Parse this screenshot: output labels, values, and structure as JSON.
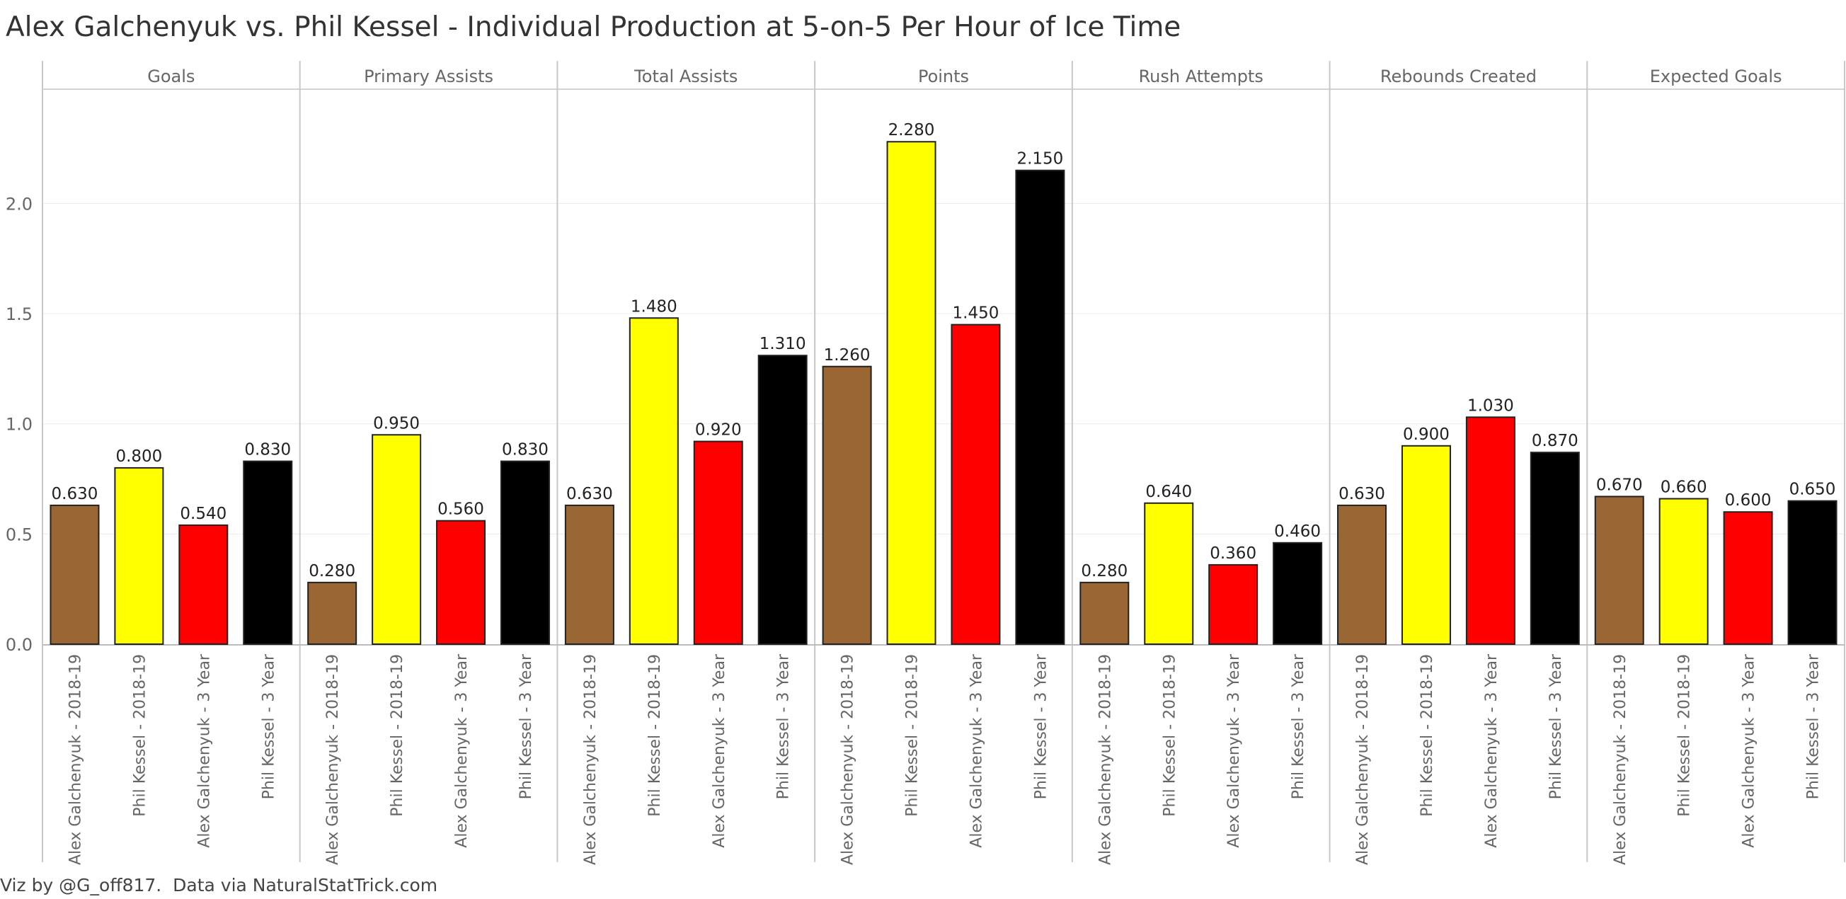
{
  "title": "Alex Galchenyuk vs. Phil Kessel - Individual Production at 5-on-5 Per Hour of Ice Time",
  "footer": "Viz by @G_off817.  Data via NaturalStatTrick.com",
  "colors": {
    "Alex Galchenyuk - 2018-19": "#9a6634",
    "Phil Kessel - 2018-19": "#ffff00",
    "Alex Galchenyuk - 3 Year": "#ff0000",
    "Phil Kessel - 3 Year": "#000000"
  },
  "chart_data": {
    "type": "bar",
    "title": "Alex Galchenyuk vs. Phil Kessel - Individual Production at 5-on-5 Per Hour of Ice Time",
    "panels": [
      "Goals",
      "Primary Assists",
      "Total Assists",
      "Points",
      "Rush Attempts",
      "Rebounds Created",
      "Expected Goals"
    ],
    "categories": [
      "Alex Galchenyuk - 2018-19",
      "Phil Kessel - 2018-19",
      "Alex Galchenyuk - 3 Year",
      "Phil Kessel - 3 Year"
    ],
    "values": [
      [
        0.63,
        0.8,
        0.54,
        0.83
      ],
      [
        0.28,
        0.95,
        0.56,
        0.83
      ],
      [
        0.63,
        1.48,
        0.92,
        1.31
      ],
      [
        1.26,
        2.28,
        1.45,
        2.15
      ],
      [
        0.28,
        0.64,
        0.36,
        0.46
      ],
      [
        0.63,
        0.9,
        1.03,
        0.87
      ],
      [
        0.67,
        0.66,
        0.6,
        0.65
      ]
    ],
    "labels": [
      [
        "0.630",
        "0.800",
        "0.540",
        "0.830"
      ],
      [
        "0.280",
        "0.950",
        "0.560",
        "0.830"
      ],
      [
        "0.630",
        "1.480",
        "0.920",
        "1.310"
      ],
      [
        "1.260",
        "2.280",
        "1.450",
        "2.150"
      ],
      [
        "0.280",
        "0.640",
        "0.360",
        "0.460"
      ],
      [
        "0.630",
        "0.900",
        "1.030",
        "0.870"
      ],
      [
        "0.670",
        "0.660",
        "0.600",
        "0.650"
      ]
    ],
    "yticks": [
      "0.0",
      "0.5",
      "1.0",
      "1.5",
      "2.0"
    ],
    "ylim": [
      0,
      2.5
    ],
    "grid": true
  }
}
